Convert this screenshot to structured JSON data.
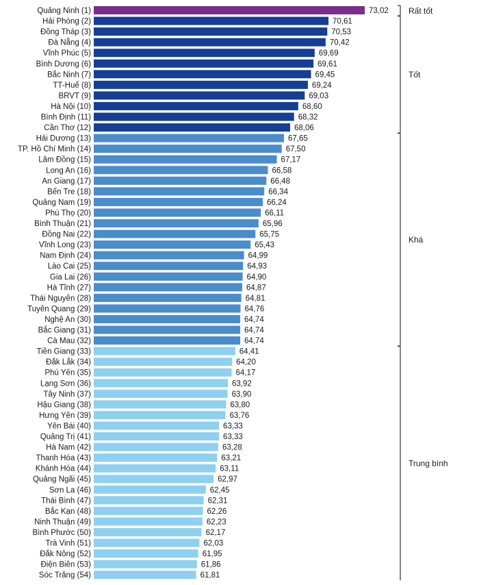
{
  "chart_data": {
    "type": "bar",
    "orientation": "horizontal",
    "categories": [
      "Quảng Ninh (1)",
      "Hải Phòng (2)",
      "Đồng Tháp (3)",
      "Đà Nẵng (4)",
      "Vĩnh Phúc (5)",
      "Bình Dương (6)",
      "Bắc Ninh (7)",
      "TT-Huế (8)",
      "BRVT (9)",
      "Hà Nội (10)",
      "Bình Định (11)",
      "Cần Thơ (12)",
      "Hải Dương (13)",
      "TP. Hồ Chí Minh (14)",
      "Lâm Đồng (15)",
      "Long An (16)",
      "An Giang (17)",
      "Bến Tre (18)",
      "Quảng Nam (19)",
      "Phú Thọ (20)",
      "Bình Thuận (21)",
      "Đồng Nai (22)",
      "Vĩnh Long (23)",
      "Nam Định (24)",
      "Lào Cai (25)",
      "Gia Lai (26)",
      "Hà Tĩnh (27)",
      "Thái Nguyên (28)",
      "Tuyên Quang (29)",
      "Nghệ An (30)",
      "Bắc Giang (31)",
      "Cà Mau (32)",
      "Tiền Giang (33)",
      "Đắk Lắk (34)",
      "Phú Yên (35)",
      "Lạng Sơn (36)",
      "Tây Ninh (37)",
      "Hậu Giang (38)",
      "Hưng Yên (39)",
      "Yên Bái (40)",
      "Quảng Trị (41)",
      "Hà Nam (42)",
      "Thanh Hóa (43)",
      "Khánh Hòa (44)",
      "Quảng Ngãi (45)",
      "Sơn La (46)",
      "Thái Bình (47)",
      "Bắc Kạn (48)",
      "Ninh Thuận (49)",
      "Bình Phước (50)",
      "Trà Vinh (51)",
      "Đắk Nông (52)",
      "Điện Biên (53)",
      "Sóc Trăng (54)"
    ],
    "values": [
      73.02,
      70.61,
      70.53,
      70.42,
      69.69,
      69.61,
      69.45,
      69.24,
      69.03,
      68.6,
      68.32,
      68.06,
      67.65,
      67.5,
      67.17,
      66.58,
      66.48,
      66.34,
      66.24,
      66.11,
      65.96,
      65.75,
      65.43,
      64.99,
      64.93,
      64.9,
      64.87,
      64.81,
      64.76,
      64.74,
      64.74,
      64.74,
      64.41,
      64.2,
      64.17,
      63.92,
      63.9,
      63.8,
      63.76,
      63.33,
      63.33,
      63.28,
      63.21,
      63.11,
      62.97,
      62.45,
      62.31,
      62.26,
      62.23,
      62.17,
      62.03,
      61.95,
      61.86,
      61.81
    ],
    "value_labels": [
      "73,02",
      "70,61",
      "70,53",
      "70,42",
      "69,69",
      "69,61",
      "69,45",
      "69,24",
      "69,03",
      "68,60",
      "68,32",
      "68,06",
      "67,65",
      "67,50",
      "67,17",
      "66,58",
      "66,48",
      "66,34",
      "66,24",
      "66,11",
      "65,96",
      "65,75",
      "65,43",
      "64,99",
      "64,93",
      "64,90",
      "64,87",
      "64,81",
      "64,76",
      "64,74",
      "64,74",
      "64,74",
      "64,41",
      "64,20",
      "64,17",
      "63,92",
      "63,90",
      "63,80",
      "63,76",
      "63,33",
      "63,33",
      "63,28",
      "63,21",
      "63,11",
      "62,97",
      "62,45",
      "62,31",
      "62,26",
      "62,23",
      "62,17",
      "62,03",
      "61,95",
      "61,86",
      "61,81"
    ],
    "groups": [
      {
        "label": "Rất tốt",
        "start": 0,
        "end": 0,
        "color": "#7b2d8b"
      },
      {
        "label": "Tốt",
        "start": 1,
        "end": 11,
        "color": "#163f94"
      },
      {
        "label": "Khá",
        "start": 12,
        "end": 31,
        "color": "#4b8ccc"
      },
      {
        "label": "Trung bình",
        "start": 32,
        "end": 53,
        "color": "#8fd0f0"
      }
    ],
    "title": "",
    "xlabel": "",
    "ylabel": "",
    "grid": false,
    "legend": "none"
  }
}
